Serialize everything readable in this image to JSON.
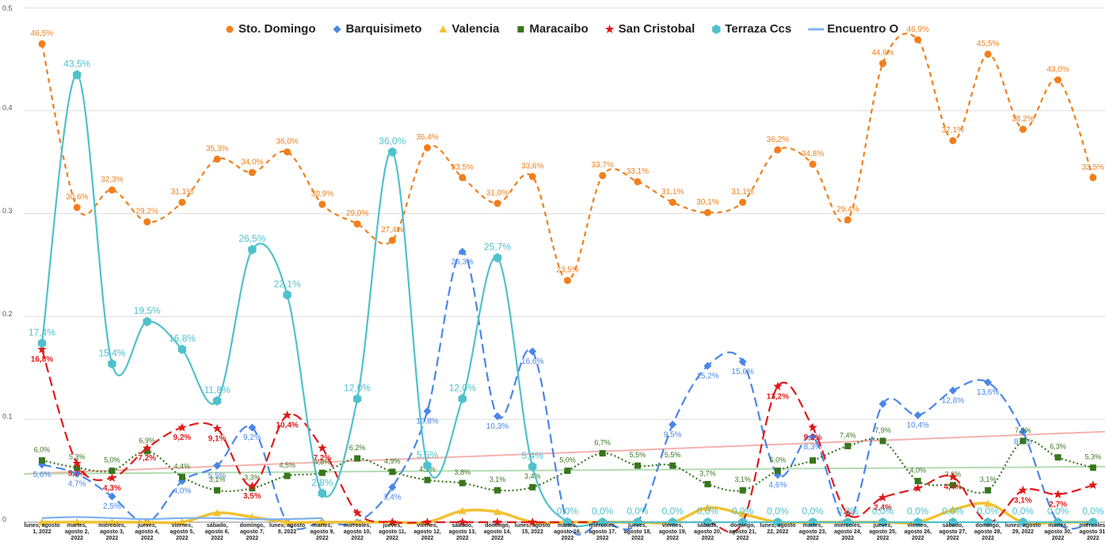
{
  "chart_data": {
    "type": "line",
    "categories": [
      "lunes, agosto 1, 2022",
      "martes, agosto 2, 2022",
      "miércoles, agosto 3, 2022",
      "jueves, agosto 4, 2022",
      "viernes, agosto 5, 2022",
      "sábado, agosto 6, 2022",
      "domingo, agosto 7, 2022",
      "lunes, agosto 8, 2022",
      "martes, agosto 9, 2022",
      "miércoles, agosto 10, 2022",
      "jueves, agosto 11, 2022",
      "viernes, agosto 12, 2022",
      "sábado, agosto 13, 2022",
      "domingo, agosto 14, 2022",
      "lunes, agosto 15, 2022",
      "martes, agosto 16, 2022",
      "miércoles, agosto 17, 2022",
      "jueves, agosto 18, 2022",
      "viernes, agosto 19, 2022",
      "sábado, agosto 20, 2022",
      "domingo, agosto 21, 2022",
      "lunes, agosto 22, 2022",
      "martes, agosto 23, 2022",
      "miércoles, agosto 24, 2022",
      "jueves, agosto 25, 2022",
      "viernes, agosto 26, 2022",
      "sábado, agosto 27, 2022",
      "domingo, agosto 28, 2022",
      "lunes, agosto 29, 2022",
      "martes, agosto 30, 2022",
      "miércoles, agosto 31, 2022"
    ],
    "ylim": [
      0,
      0.5
    ],
    "yticks": [
      0,
      0.1,
      0.2,
      0.3,
      0.4,
      0.5
    ],
    "grid": true,
    "legend": "top",
    "series": [
      {
        "name": "Sto. Domingo",
        "color": "#f07f1b",
        "marker": "circle",
        "dash": "dashed",
        "label_position": "above",
        "values": [
          0.465,
          0.306,
          0.323,
          0.292,
          0.311,
          0.353,
          0.34,
          0.36,
          0.309,
          0.29,
          0.274,
          0.364,
          0.335,
          0.31,
          0.336,
          0.235,
          0.337,
          0.331,
          0.311,
          0.301,
          0.311,
          0.362,
          0.348,
          0.294,
          0.446,
          0.469,
          0.371,
          0.455,
          0.382,
          0.43,
          0.335
        ],
        "value_labels": [
          "46,5%",
          "30,6%",
          "32,3%",
          "29,2%",
          "31,1%",
          "35,3%",
          "34,0%",
          "36,0%",
          "30,9%",
          "29,0%",
          "27,4%",
          "36,4%",
          "33,5%",
          "31,0%",
          "33,6%",
          "23,5%",
          "33,7%",
          "33,1%",
          "31,1%",
          "30,1%",
          "31,1%",
          "36,2%",
          "34,8%",
          "29,4%",
          "44,6%",
          "46,9%",
          "37,1%",
          "45,5%",
          "38,2%",
          "43,0%",
          "33,5%"
        ]
      },
      {
        "name": "Barquisimeto",
        "color": "#4a86e8",
        "marker": "diamond",
        "dash": "longdash",
        "label_position": "below",
        "values": [
          0.056,
          0.047,
          0.025,
          0,
          0.04,
          0.055,
          0.092,
          0,
          0,
          0,
          0.034,
          0.108,
          0.263,
          0.103,
          0.166,
          0,
          0,
          0,
          0.095,
          0.152,
          0.156,
          0.046,
          0.083,
          0,
          0.115,
          0.104,
          0.128,
          0.136,
          0.088,
          0,
          0
        ],
        "value_labels": [
          "5,6%",
          "4,7%",
          "2,5%",
          null,
          "4,0%",
          "5,5%",
          "9,2%",
          null,
          null,
          null,
          "3,4%",
          "10,8%",
          "26,3%",
          "10,3%",
          "16,6%",
          null,
          null,
          null,
          "9,5%",
          "15,2%",
          "15,6%",
          "4,6%",
          "8,3%",
          null,
          null,
          "10,4%",
          "12,8%",
          "13,6%",
          "8,8%",
          null,
          null
        ]
      },
      {
        "name": "Valencia",
        "color": "#f1c232",
        "marker": "triangle",
        "dash": "solid",
        "label_position": "above",
        "values": [
          0,
          0,
          0,
          0,
          0,
          0.009,
          0.005,
          0,
          0,
          0,
          0,
          0,
          0.011,
          0.01,
          0,
          0,
          0,
          0,
          0,
          0.014,
          0.008,
          0,
          0,
          0,
          0,
          0,
          0.012,
          0.018,
          0,
          0,
          0
        ]
      },
      {
        "name": "Maracaibo",
        "color": "#38761d",
        "marker": "square",
        "dash": "dotted",
        "label_position": "above",
        "values": [
          0.06,
          0.053,
          0.05,
          0.069,
          0.044,
          0.031,
          0.033,
          0.045,
          0.048,
          0.062,
          0.049,
          0.041,
          0.038,
          0.031,
          0.034,
          0.05,
          0.067,
          0.055,
          0.055,
          0.037,
          0.031,
          0.05,
          0.06,
          0.074,
          0.079,
          0.04,
          0.036,
          0.031,
          0.079,
          0.063,
          0.053
        ],
        "value_labels": [
          "6,0%",
          "5,3%",
          "5,0%",
          "6,9%",
          "4,4%",
          "3,1%",
          "3,3%",
          "4,5%",
          "4,8%",
          "6,2%",
          "4,9%",
          "4,1%",
          "3,8%",
          "3,1%",
          "3,4%",
          "5,0%",
          "6,7%",
          "5,5%",
          "5,5%",
          "3,7%",
          "3,1%",
          "5,0%",
          null,
          "7,4%",
          "7,9%",
          "4,0%",
          "3,6%",
          "3,1%",
          "7,9%",
          "6,3%",
          "5,3%"
        ]
      },
      {
        "name": "San Cristobal",
        "color": "#e0191b",
        "marker": "star",
        "dash": "longdash",
        "label_position": "below",
        "values": [
          0.168,
          0.057,
          0.043,
          0.072,
          0.092,
          0.091,
          0.035,
          0.104,
          0.072,
          0.009,
          0,
          0,
          0,
          0,
          0,
          0,
          0,
          0,
          0,
          0,
          0,
          0.132,
          0.092,
          0.008,
          0.024,
          0.033,
          0.044,
          0,
          0.031,
          0.027,
          0.036
        ],
        "value_labels": [
          "16,8%",
          "5,7%",
          "4,3%",
          "7,2%",
          "9,2%",
          "9,1%",
          "3,5%",
          "10,4%",
          "7,2%",
          null,
          null,
          null,
          null,
          null,
          null,
          null,
          null,
          null,
          null,
          null,
          null,
          "13,2%",
          "9,2%",
          null,
          "2,4%",
          null,
          "4,4%",
          null,
          "3,1%",
          "2,7%",
          null
        ]
      },
      {
        "name": "Terraza Ccs",
        "color": "#4fc1cc",
        "marker": "hexagon",
        "dash": "solid",
        "label_position": "above",
        "values": [
          0.174,
          0.435,
          0.154,
          0.195,
          0.168,
          0.118,
          0.265,
          0.221,
          0.028,
          0.12,
          0.36,
          0.055,
          0.12,
          0.257,
          0.054,
          0,
          0,
          0,
          0,
          0,
          0,
          0,
          0,
          0,
          0,
          0,
          0,
          0,
          0,
          0,
          0
        ],
        "value_labels": [
          "17,4%",
          "43,5%",
          "15,4%",
          "19,5%",
          "16,8%",
          "11,8%",
          "26,5%",
          "22,1%",
          "2,8%",
          "12,0%",
          "36,0%",
          "5,5%",
          "12,0%",
          "25,7%",
          "5,4%",
          "0,0%",
          "0,0%",
          "0,0%",
          "0,0%",
          "0,0%",
          "0,0%",
          "0,0%",
          "0,0%",
          "0,0%",
          "0,0%",
          "0,0%",
          "0,0%",
          "0,0%",
          "0,0%",
          "0,0%",
          "0,0%"
        ]
      },
      {
        "name": "Encuentro O",
        "color": "#7fb2ef",
        "marker": "none",
        "dash": "solid",
        "label_position": "above",
        "values": [
          0.004,
          0.005,
          0.004,
          0.003,
          0.004,
          0.004,
          0.003,
          0.003,
          0.004,
          null,
          null,
          null,
          null,
          null,
          null,
          null,
          null,
          null,
          null,
          null,
          null,
          null,
          null,
          null,
          null,
          null,
          null,
          null,
          null,
          null,
          null
        ]
      }
    ],
    "trendlines": [
      {
        "color": "#f4b2ad",
        "start": 0.047,
        "end": 0.088
      },
      {
        "color": "#b3dcb3",
        "start": 0.047,
        "end": 0.054
      }
    ]
  }
}
